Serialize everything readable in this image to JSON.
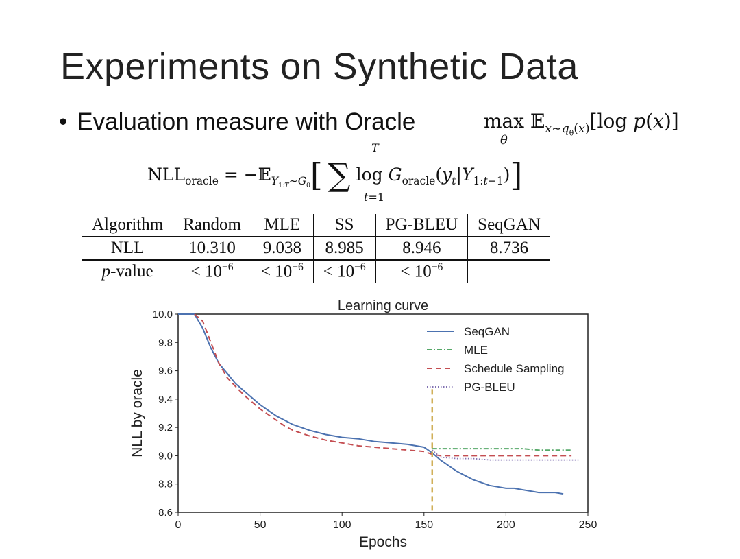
{
  "slide": {
    "title": "Experiments on Synthetic Data",
    "bullet": "Evaluation measure with Oracle"
  },
  "table": {
    "headers": [
      "Algorithm",
      "Random",
      "MLE",
      "SS",
      "PG-BLEU",
      "SeqGAN"
    ],
    "nll_row": [
      "NLL",
      "10.310",
      "9.038",
      "8.985",
      "8.946",
      "8.736"
    ],
    "pvalue_label": "-value",
    "pvalue_prefix": "p",
    "pvalue_cells": [
      "< 10",
      "< 10",
      "< 10",
      "< 10",
      ""
    ],
    "pvalue_exp": "−6"
  },
  "chart_data": {
    "type": "line",
    "title": "Learning curve",
    "xlabel": "Epochs",
    "ylabel": "NLL by oracle",
    "xlim": [
      0,
      250
    ],
    "ylim": [
      8.6,
      10.0
    ],
    "xticks": [
      0,
      50,
      100,
      150,
      200,
      250
    ],
    "yticks": [
      8.6,
      8.8,
      9.0,
      9.2,
      9.4,
      9.6,
      9.8,
      10.0
    ],
    "legend_position": "top-right",
    "vline_x": 155,
    "series": [
      {
        "name": "SeqGAN",
        "color": "#4c72b0",
        "style": "solid",
        "x": [
          0,
          10,
          15,
          20,
          25,
          30,
          35,
          40,
          45,
          50,
          55,
          60,
          65,
          70,
          75,
          80,
          90,
          100,
          110,
          120,
          130,
          140,
          150,
          155,
          160,
          165,
          170,
          175,
          180,
          185,
          190,
          195,
          200,
          205,
          210,
          215,
          220,
          225,
          230,
          235
        ],
        "y": [
          10.0,
          10.0,
          9.9,
          9.76,
          9.65,
          9.58,
          9.51,
          9.46,
          9.41,
          9.36,
          9.32,
          9.28,
          9.25,
          9.22,
          9.2,
          9.18,
          9.15,
          9.13,
          9.12,
          9.1,
          9.09,
          9.08,
          9.06,
          9.02,
          8.97,
          8.93,
          8.89,
          8.86,
          8.83,
          8.81,
          8.79,
          8.78,
          8.77,
          8.77,
          8.76,
          8.75,
          8.74,
          8.74,
          8.74,
          8.73
        ]
      },
      {
        "name": "MLE",
        "color": "#55a868",
        "style": "dashdot",
        "x": [
          155,
          160,
          170,
          180,
          190,
          200,
          210,
          220,
          230,
          240
        ],
        "y": [
          9.05,
          9.05,
          9.05,
          9.05,
          9.05,
          9.05,
          9.05,
          9.04,
          9.04,
          9.04
        ]
      },
      {
        "name": "Schedule Sampling",
        "color": "#c44e52",
        "style": "dashed",
        "x": [
          10,
          15,
          20,
          25,
          30,
          35,
          40,
          45,
          50,
          55,
          60,
          65,
          70,
          75,
          80,
          90,
          100,
          110,
          120,
          130,
          140,
          150,
          155,
          160,
          170,
          180,
          190,
          200,
          210,
          220,
          230,
          240
        ],
        "y": [
          10.0,
          9.95,
          9.8,
          9.65,
          9.55,
          9.49,
          9.43,
          9.38,
          9.33,
          9.29,
          9.25,
          9.21,
          9.18,
          9.16,
          9.14,
          9.11,
          9.09,
          9.07,
          9.06,
          9.05,
          9.04,
          9.03,
          9.01,
          9.0,
          9.0,
          9.0,
          9.0,
          9.0,
          9.0,
          9.0,
          9.0,
          9.0
        ]
      },
      {
        "name": "PG-BLEU",
        "color": "#8172b2",
        "style": "dotted",
        "x": [
          155,
          160,
          170,
          180,
          190,
          200,
          210,
          220,
          230,
          240,
          245
        ],
        "y": [
          9.04,
          8.99,
          8.98,
          8.98,
          8.97,
          8.97,
          8.97,
          8.97,
          8.97,
          8.97,
          8.97
        ]
      }
    ]
  }
}
